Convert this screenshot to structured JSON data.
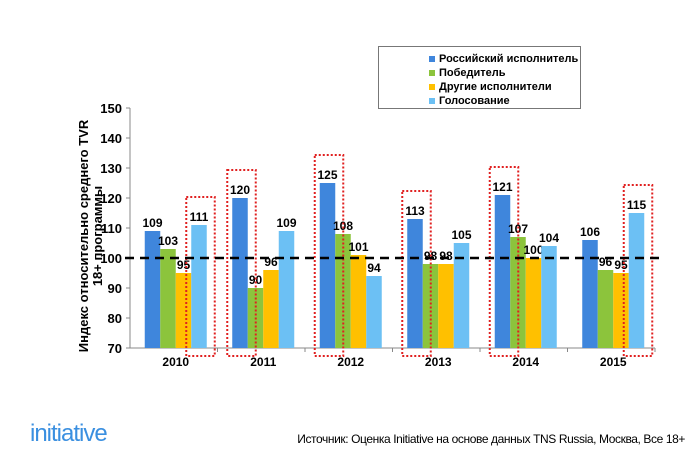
{
  "chart_data": {
    "type": "bar",
    "title": "",
    "xlabel": "",
    "ylabel": "Индекс относительно среднего TVR 18+ программы",
    "ylim": [
      70,
      150
    ],
    "yticks": [
      70,
      80,
      90,
      100,
      110,
      120,
      130,
      140,
      150
    ],
    "reference_line": 100,
    "categories": [
      "2010",
      "2011",
      "2012",
      "2013",
      "2014",
      "2015"
    ],
    "series": [
      {
        "name": "Российский исполнитель",
        "color": "#3f86dc",
        "values": [
          109,
          120,
          125,
          113,
          121,
          106
        ]
      },
      {
        "name": "Победитель",
        "color": "#8cc43c",
        "values": [
          103,
          90,
          108,
          98,
          107,
          96
        ]
      },
      {
        "name": "Другие исполнители",
        "color": "#ffc000",
        "values": [
          95,
          96,
          101,
          98,
          100,
          95
        ]
      },
      {
        "name": "Голосование",
        "color": "#6cc0f4",
        "values": [
          111,
          109,
          94,
          105,
          104,
          115
        ]
      }
    ],
    "highlighted": [
      [
        0,
        3
      ],
      [
        1,
        0
      ],
      [
        2,
        0
      ],
      [
        3,
        0
      ],
      [
        4,
        0
      ],
      [
        5,
        3
      ]
    ],
    "legend_position": "top-right"
  },
  "footer": {
    "logo": "initiative",
    "source": "Источник: Оценка Initiative на основе данных TNS Russia, Москва, Все 18+"
  }
}
